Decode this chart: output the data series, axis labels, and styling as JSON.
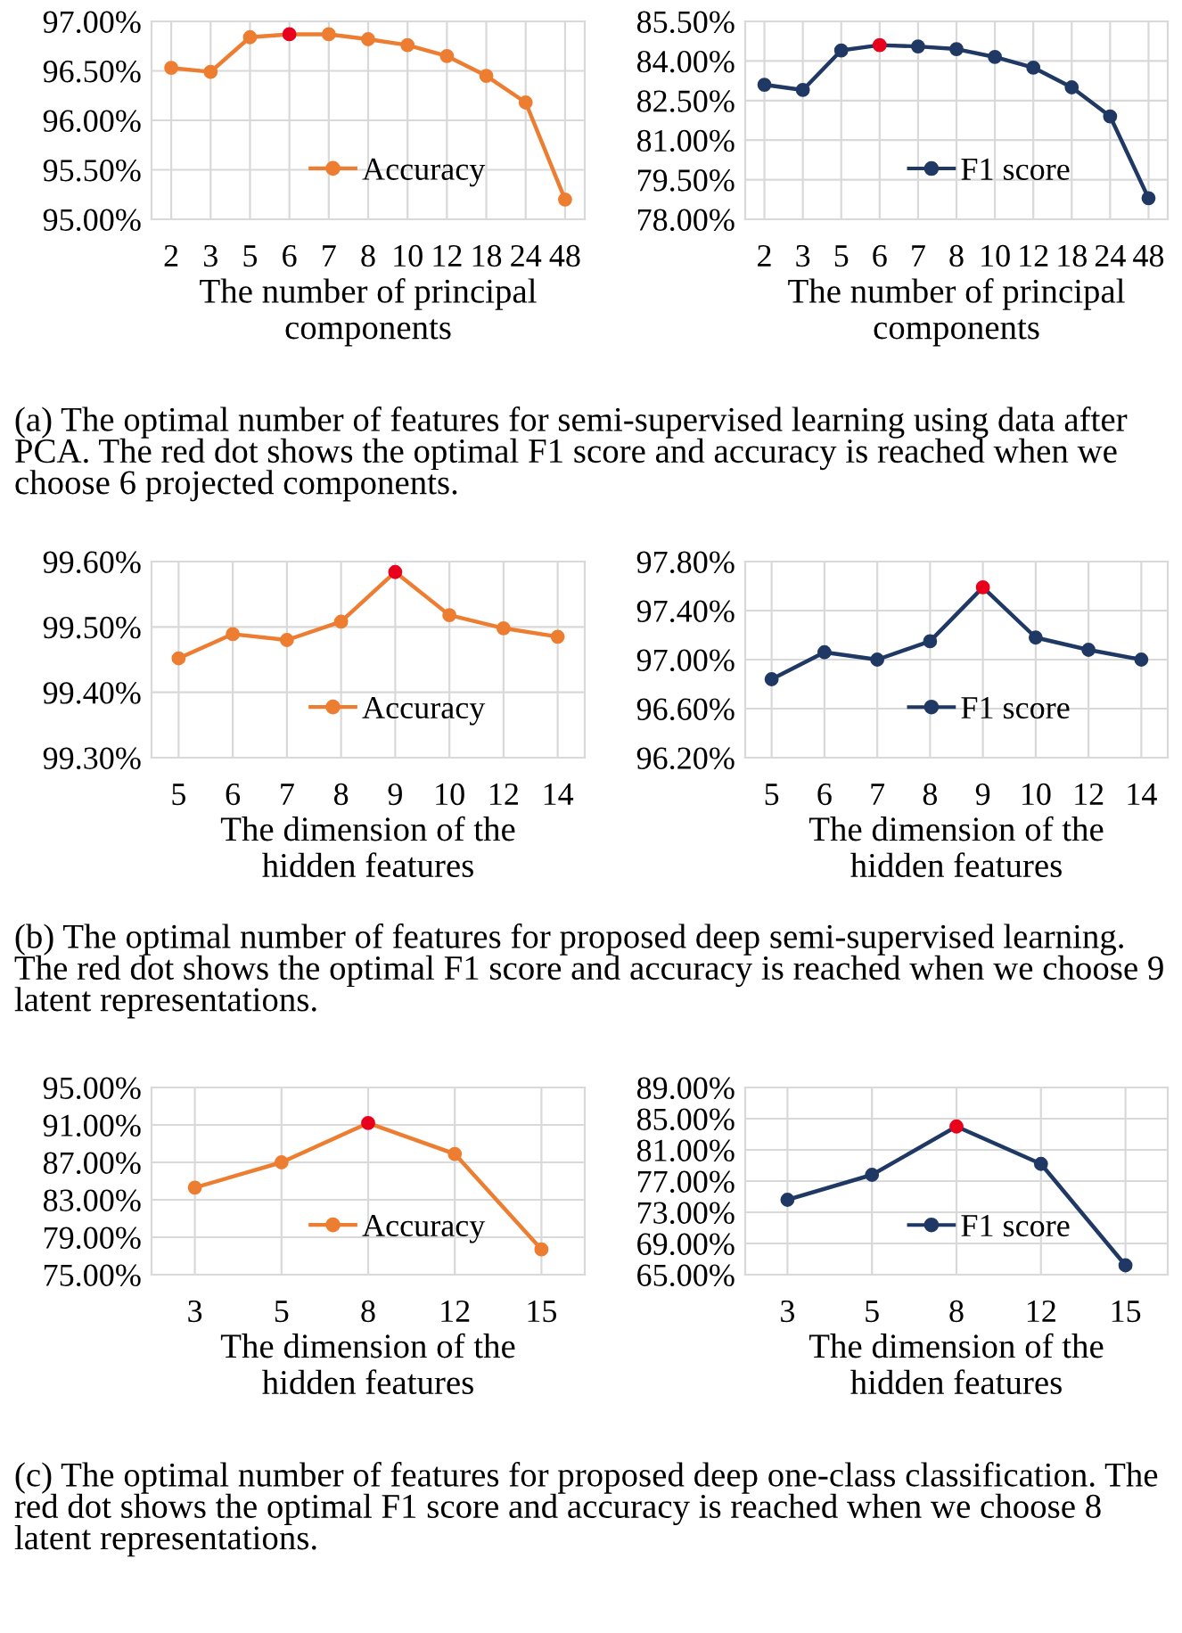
{
  "chart_data": [
    {
      "type": "line",
      "categories": [
        "2",
        "3",
        "5",
        "6",
        "7",
        "8",
        "10",
        "12",
        "18",
        "24",
        "48"
      ],
      "xlabel": "The number of principal\ncomponents",
      "series": [
        {
          "name": "Accuracy",
          "color": "#ed7d31",
          "colors": [
            "#ed7d31",
            "#ed7d31",
            "#ed7d31",
            "#e8001c",
            "#ed7d31",
            "#ed7d31",
            "#ed7d31",
            "#ed7d31",
            "#ed7d31",
            "#ed7d31",
            "#ed7d31"
          ],
          "values": [
            96.53,
            96.49,
            96.84,
            96.87,
            96.87,
            96.82,
            96.76,
            96.65,
            96.45,
            96.18,
            95.2
          ]
        }
      ],
      "ylim": [
        95,
        97
      ],
      "yticks": [
        {
          "value": 95,
          "label": "95.00%"
        },
        {
          "value": 95.5,
          "label": "95.50%"
        },
        {
          "value": 96,
          "label": "96.00%"
        },
        {
          "value": 96.5,
          "label": "96.50%"
        },
        {
          "value": 97,
          "label": "97.00%"
        }
      ],
      "grid": true,
      "legend": "lower right",
      "marker": "circle",
      "line_style": "solid",
      "annotations": [
        "(a) The optimal number of features for semi-supervised learning using data after PCA. The red dot shows the optimal F1 score and accuracy is reached when we choose 6 projected components."
      ]
    },
    {
      "type": "line",
      "categories": [
        "2",
        "3",
        "5",
        "6",
        "7",
        "8",
        "10",
        "12",
        "18",
        "24",
        "48"
      ],
      "xlabel": "The number of principal\ncomponents",
      "series": [
        {
          "name": "F1 score",
          "color": "#203864",
          "colors": [
            "#203864",
            "#203864",
            "#203864",
            "#e8001c",
            "#203864",
            "#203864",
            "#203864",
            "#203864",
            "#203864",
            "#203864",
            "#203864"
          ],
          "values": [
            83.1,
            82.9,
            84.4,
            84.6,
            84.55,
            84.45,
            84.15,
            83.75,
            83.0,
            81.9,
            78.8
          ]
        }
      ],
      "ylim": [
        78,
        85.5
      ],
      "yticks": [
        {
          "value": 78,
          "label": "78.00%"
        },
        {
          "value": 79.5,
          "label": "79.50%"
        },
        {
          "value": 81,
          "label": "81.00%"
        },
        {
          "value": 82.5,
          "label": "82.50%"
        },
        {
          "value": 84,
          "label": "84.00%"
        },
        {
          "value": 85.5,
          "label": "85.50%"
        }
      ],
      "grid": true,
      "legend": "lower right",
      "marker": "circle",
      "line_style": "solid"
    },
    {
      "type": "line",
      "categories": [
        "5",
        "6",
        "7",
        "8",
        "9",
        "10",
        "12",
        "14"
      ],
      "xlabel": "The dimension of the\nhidden features",
      "series": [
        {
          "name": "Accuracy",
          "color": "#ed7d31",
          "colors": [
            "#ed7d31",
            "#ed7d31",
            "#ed7d31",
            "#ed7d31",
            "#e8001c",
            "#ed7d31",
            "#ed7d31",
            "#ed7d31"
          ],
          "values": [
            99.452,
            99.489,
            99.48,
            99.508,
            99.584,
            99.518,
            99.498,
            99.485
          ]
        }
      ],
      "ylim": [
        99.3,
        99.6
      ],
      "yticks": [
        {
          "value": 99.3,
          "label": "99.30%"
        },
        {
          "value": 99.4,
          "label": "99.40%"
        },
        {
          "value": 99.5,
          "label": "99.50%"
        },
        {
          "value": 99.6,
          "label": "99.60%"
        }
      ],
      "grid": true,
      "legend": "lower right",
      "marker": "circle",
      "line_style": "solid",
      "annotations": [
        "(b) The optimal number of features for proposed deep semi-supervised learning. The red dot shows the optimal F1 score and accuracy is reached when we choose 9 latent representations."
      ]
    },
    {
      "type": "line",
      "categories": [
        "5",
        "6",
        "7",
        "8",
        "9",
        "10",
        "12",
        "14"
      ],
      "xlabel": "The dimension of the\nhidden features",
      "series": [
        {
          "name": "F1 score",
          "color": "#203864",
          "colors": [
            "#203864",
            "#203864",
            "#203864",
            "#203864",
            "#e8001c",
            "#203864",
            "#203864",
            "#203864"
          ],
          "values": [
            96.84,
            97.06,
            97.0,
            97.15,
            97.59,
            97.18,
            97.08,
            97.0
          ]
        }
      ],
      "ylim": [
        96.2,
        97.8
      ],
      "yticks": [
        {
          "value": 96.2,
          "label": "96.20%"
        },
        {
          "value": 96.6,
          "label": "96.60%"
        },
        {
          "value": 97.0,
          "label": "97.00%"
        },
        {
          "value": 97.4,
          "label": "97.40%"
        },
        {
          "value": 97.8,
          "label": "97.80%"
        }
      ],
      "grid": true,
      "legend": "lower right",
      "marker": "circle",
      "line_style": "solid"
    },
    {
      "type": "line",
      "categories": [
        "3",
        "5",
        "8",
        "12",
        "15"
      ],
      "xlabel": "The dimension of the\nhidden features",
      "series": [
        {
          "name": "Accuracy",
          "color": "#ed7d31",
          "colors": [
            "#ed7d31",
            "#ed7d31",
            "#e8001c",
            "#ed7d31",
            "#ed7d31"
          ],
          "values": [
            84.3,
            87.0,
            91.2,
            87.9,
            77.7
          ]
        }
      ],
      "ylim": [
        75,
        95
      ],
      "yticks": [
        {
          "value": 75,
          "label": "75.00%"
        },
        {
          "value": 79,
          "label": "79.00%"
        },
        {
          "value": 83,
          "label": "83.00%"
        },
        {
          "value": 87,
          "label": "87.00%"
        },
        {
          "value": 91,
          "label": "91.00%"
        },
        {
          "value": 95,
          "label": "95.00%"
        }
      ],
      "grid": true,
      "legend": "lower right",
      "marker": "circle",
      "line_style": "solid",
      "annotations": [
        "(c) The optimal number of features for proposed deep one-class classification. The red dot shows the optimal F1 score and accuracy is reached when we choose 8 latent representations."
      ]
    },
    {
      "type": "line",
      "categories": [
        "3",
        "5",
        "8",
        "12",
        "15"
      ],
      "xlabel": "The dimension of the\nhidden features",
      "series": [
        {
          "name": "F1 score",
          "color": "#203864",
          "colors": [
            "#203864",
            "#203864",
            "#e8001c",
            "#203864",
            "#203864"
          ],
          "values": [
            74.6,
            77.8,
            84.0,
            79.2,
            66.2
          ]
        }
      ],
      "ylim": [
        65,
        89
      ],
      "yticks": [
        {
          "value": 65,
          "label": "65.00%"
        },
        {
          "value": 69,
          "label": "69.00%"
        },
        {
          "value": 73,
          "label": "73.00%"
        },
        {
          "value": 77,
          "label": "77.00%"
        },
        {
          "value": 81,
          "label": "81.00%"
        },
        {
          "value": 85,
          "label": "85.00%"
        },
        {
          "value": 89,
          "label": "89.00%"
        }
      ],
      "grid": true,
      "legend": "lower right",
      "marker": "circle",
      "line_style": "solid"
    }
  ]
}
